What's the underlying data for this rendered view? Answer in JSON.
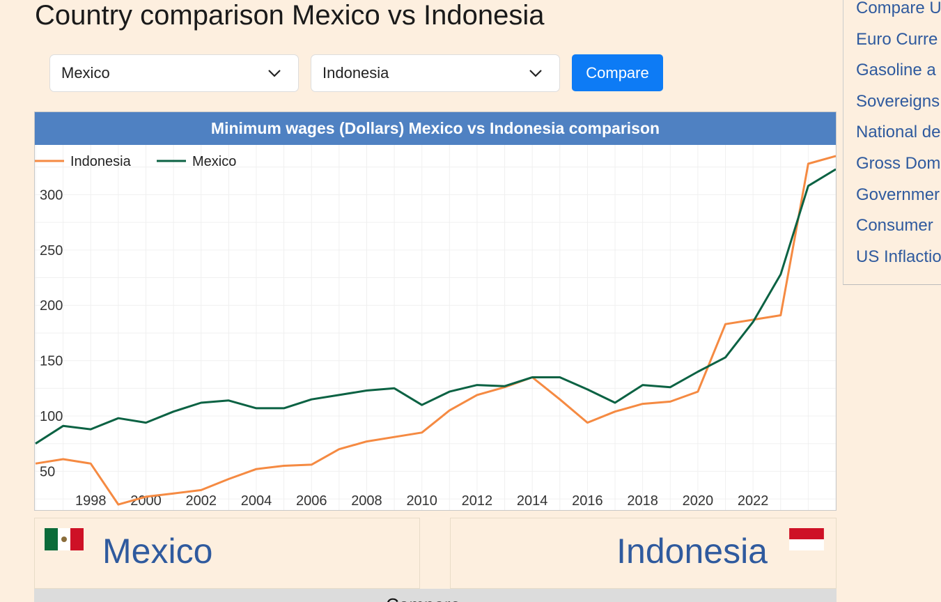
{
  "page": {
    "title": "Country comparison Mexico vs Indonesia"
  },
  "controls": {
    "country1": "Mexico",
    "country2": "Indonesia",
    "compare_label": "Compare"
  },
  "sidebar": {
    "links": [
      "Compare U",
      "Euro Curre",
      "Gasoline a",
      "Sovereigns",
      "National de",
      "Gross Dom",
      "Governmer",
      "Consumer",
      "US Inflactio"
    ]
  },
  "chart_data": {
    "type": "line",
    "title": "Minimum wages (Dollars) Mexico vs Indonesia comparison",
    "xlabel": "",
    "ylabel": "",
    "x": [
      1996,
      1997,
      1998,
      1999,
      2000,
      2001,
      2002,
      2003,
      2004,
      2005,
      2006,
      2007,
      2008,
      2009,
      2010,
      2011,
      2012,
      2013,
      2014,
      2015,
      2016,
      2017,
      2018,
      2019,
      2020,
      2021,
      2022,
      2023,
      2024,
      2025
    ],
    "x_ticks": [
      1998,
      2000,
      2002,
      2004,
      2006,
      2008,
      2010,
      2012,
      2014,
      2016,
      2018,
      2020,
      2022
    ],
    "y_ticks": [
      50,
      100,
      150,
      200,
      250,
      300
    ],
    "xlim": [
      1996,
      2025
    ],
    "ylim": [
      15,
      345
    ],
    "legend": "top-left",
    "grid": true,
    "series": [
      {
        "name": "Indonesia",
        "color": "#f58a42",
        "values": [
          57,
          61,
          57,
          20,
          27,
          30,
          33,
          43,
          52,
          55,
          56,
          70,
          77,
          81,
          85,
          105,
          119,
          126,
          135,
          115,
          94,
          104,
          111,
          113,
          122,
          183,
          187,
          191,
          328,
          335
        ]
      },
      {
        "name": "Mexico",
        "color": "#0b6243",
        "values": [
          75,
          91,
          88,
          98,
          94,
          104,
          112,
          114,
          107,
          107,
          115,
          119,
          123,
          125,
          110,
          122,
          128,
          127,
          135,
          135,
          124,
          112,
          128,
          126,
          140,
          153,
          185,
          228,
          308,
          323
        ]
      }
    ]
  },
  "countries": {
    "left": {
      "name": "Mexico",
      "flag": "mexico-flag"
    },
    "right": {
      "name": "Indonesia",
      "flag": "indonesia-flag"
    }
  },
  "footer": {
    "text": "Compare"
  }
}
